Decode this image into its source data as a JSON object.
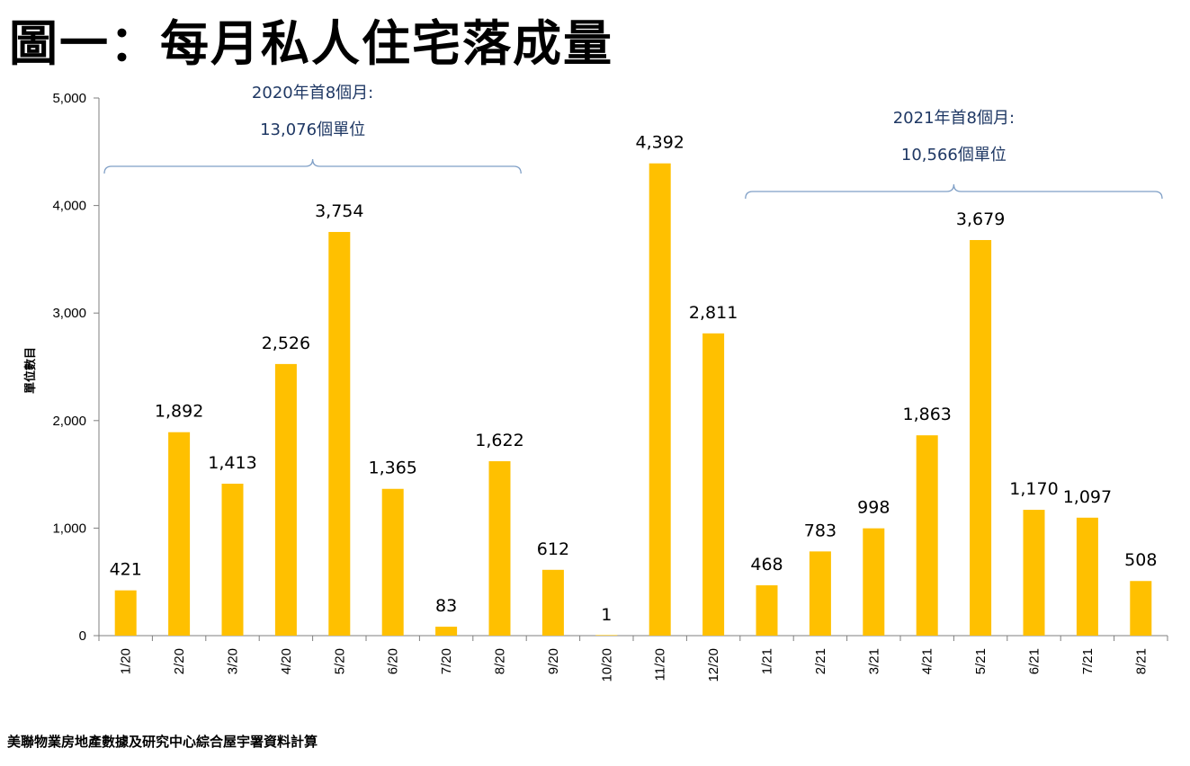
{
  "chart_data": {
    "type": "bar",
    "title": "圖一：每月私人住宅落成量",
    "ylabel": "單位數目",
    "xlabel": "",
    "ylim": [
      0,
      5000
    ],
    "yticks": [
      0,
      1000,
      2000,
      3000,
      4000,
      5000
    ],
    "ytick_labels": [
      "0",
      "1,000",
      "2,000",
      "3,000",
      "4,000",
      "5,000"
    ],
    "categories": [
      "1/20",
      "2/20",
      "3/20",
      "4/20",
      "5/20",
      "6/20",
      "7/20",
      "8/20",
      "9/20",
      "10/20",
      "11/20",
      "12/20",
      "1/21",
      "2/21",
      "3/21",
      "4/21",
      "5/21",
      "6/21",
      "7/21",
      "8/21"
    ],
    "values": [
      421,
      1892,
      1413,
      2526,
      3754,
      1365,
      83,
      1622,
      612,
      1,
      4392,
      2811,
      468,
      783,
      998,
      1863,
      3679,
      1170,
      1097,
      508
    ],
    "value_labels": [
      "421",
      "1,892",
      "1,413",
      "2,526",
      "3,754",
      "1,365",
      "83",
      "1,622",
      "612",
      "1",
      "4,392",
      "2,811",
      "468",
      "783",
      "998",
      "1,863",
      "3,679",
      "1,170",
      "1,097",
      "508"
    ],
    "bar_color": "#FFC000",
    "annotations": [
      {
        "line1": "2020年首8個月:",
        "line2": "13,076個單位",
        "from": 0,
        "to": 7
      },
      {
        "line1": "2021年首8個月:",
        "line2": "10,566個單位",
        "from": 12,
        "to": 19
      }
    ],
    "annotation_color": "#1f3864",
    "bracket_color": "#7f9fc6"
  },
  "source": "美聯物業房地產數據及研究中心綜合屋宇署資料計算"
}
